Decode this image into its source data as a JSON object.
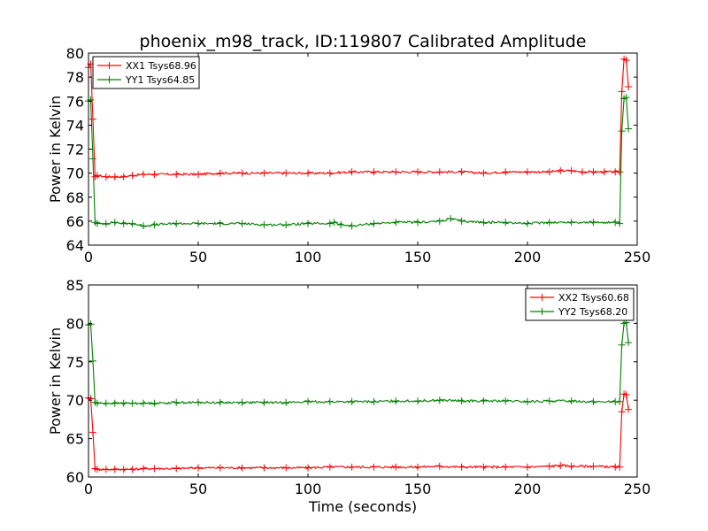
{
  "title": "phoenix_m98_track, ID:119807 Calibrated Amplitude",
  "xlabel": "Time (seconds)",
  "colors": {
    "red": "#ff0000",
    "green": "#008000"
  },
  "chart_data": [
    {
      "type": "line",
      "ylabel": "Power in Kelvin",
      "xlim": [
        0,
        250
      ],
      "ylim": [
        64,
        80
      ],
      "xticks": [
        "0",
        "50",
        "100",
        "150",
        "200",
        "250"
      ],
      "yticks": [
        "64",
        "66",
        "68",
        "70",
        "72",
        "74",
        "76",
        "78",
        "80"
      ],
      "legend_position": "upper-left",
      "series": [
        {
          "name": "XX1 Tsys68.96",
          "color": "#ff0000",
          "x": [
            0,
            1,
            2,
            3,
            4,
            8,
            12,
            16,
            20,
            25,
            30,
            40,
            50,
            60,
            70,
            80,
            90,
            100,
            110,
            120,
            130,
            140,
            150,
            160,
            170,
            180,
            190,
            200,
            210,
            215,
            220,
            225,
            230,
            235,
            240,
            242,
            243,
            244,
            245,
            246
          ],
          "y": [
            78.8,
            79.1,
            74.5,
            69.7,
            69.8,
            69.7,
            69.7,
            69.7,
            69.8,
            69.9,
            69.9,
            69.9,
            69.9,
            70.0,
            70.0,
            70.0,
            70.0,
            70.0,
            70.0,
            70.1,
            70.1,
            70.1,
            70.1,
            70.1,
            70.1,
            70.0,
            70.1,
            70.1,
            70.1,
            70.2,
            70.2,
            70.1,
            70.1,
            70.1,
            70.1,
            70.1,
            76.8,
            79.5,
            79.4,
            77.2
          ]
        },
        {
          "name": "YY1 Tsys64.85",
          "color": "#008000",
          "x": [
            0,
            1,
            2,
            3,
            4,
            8,
            12,
            16,
            20,
            25,
            30,
            40,
            50,
            60,
            70,
            80,
            90,
            100,
            110,
            112,
            115,
            120,
            130,
            140,
            150,
            160,
            165,
            170,
            180,
            190,
            200,
            210,
            220,
            230,
            240,
            242,
            243,
            244,
            245,
            246
          ],
          "y": [
            76.0,
            76.1,
            71.2,
            65.9,
            65.8,
            65.8,
            65.9,
            65.8,
            65.8,
            65.6,
            65.7,
            65.8,
            65.8,
            65.8,
            65.8,
            65.7,
            65.7,
            65.8,
            65.8,
            65.9,
            65.7,
            65.6,
            65.8,
            65.9,
            65.9,
            66.0,
            66.2,
            66.0,
            65.9,
            65.9,
            65.8,
            65.9,
            65.9,
            65.9,
            65.9,
            65.8,
            73.5,
            76.2,
            76.3,
            73.7
          ]
        }
      ]
    },
    {
      "type": "line",
      "ylabel": "Power in Kelvin",
      "xlim": [
        0,
        250
      ],
      "ylim": [
        60,
        85
      ],
      "xticks": [
        "0",
        "50",
        "100",
        "150",
        "200",
        "250"
      ],
      "yticks": [
        "60",
        "65",
        "70",
        "75",
        "80",
        "85"
      ],
      "legend_position": "upper-right",
      "series": [
        {
          "name": "XX2 Tsys60.68",
          "color": "#ff0000",
          "x": [
            0,
            1,
            2,
            3,
            4,
            8,
            12,
            16,
            20,
            25,
            30,
            40,
            50,
            60,
            70,
            80,
            90,
            100,
            110,
            120,
            130,
            140,
            150,
            160,
            170,
            180,
            190,
            200,
            210,
            215,
            220,
            230,
            240,
            242,
            243,
            244,
            245,
            246
          ],
          "y": [
            70.3,
            70.2,
            65.8,
            61.1,
            61.0,
            61.0,
            61.0,
            61.0,
            61.0,
            61.1,
            61.1,
            61.1,
            61.2,
            61.2,
            61.2,
            61.2,
            61.2,
            61.2,
            61.3,
            61.3,
            61.3,
            61.3,
            61.3,
            61.4,
            61.3,
            61.3,
            61.3,
            61.3,
            61.4,
            61.5,
            61.4,
            61.4,
            61.3,
            61.3,
            68.5,
            70.8,
            70.7,
            68.8
          ]
        },
        {
          "name": "YY2 Tsys68.20",
          "color": "#008000",
          "x": [
            0,
            1,
            2,
            3,
            4,
            8,
            12,
            16,
            20,
            25,
            30,
            40,
            50,
            60,
            70,
            80,
            90,
            100,
            110,
            120,
            130,
            140,
            150,
            160,
            170,
            180,
            190,
            200,
            210,
            220,
            230,
            240,
            242,
            243,
            244,
            245,
            246
          ],
          "y": [
            79.8,
            79.9,
            75.1,
            69.7,
            69.6,
            69.6,
            69.6,
            69.6,
            69.6,
            69.6,
            69.6,
            69.7,
            69.7,
            69.7,
            69.7,
            69.7,
            69.7,
            69.8,
            69.8,
            69.8,
            69.8,
            69.9,
            69.9,
            70.0,
            69.9,
            69.9,
            69.9,
            69.8,
            69.9,
            69.9,
            69.8,
            69.8,
            69.8,
            77.2,
            80.0,
            80.1,
            77.5
          ]
        }
      ]
    }
  ]
}
